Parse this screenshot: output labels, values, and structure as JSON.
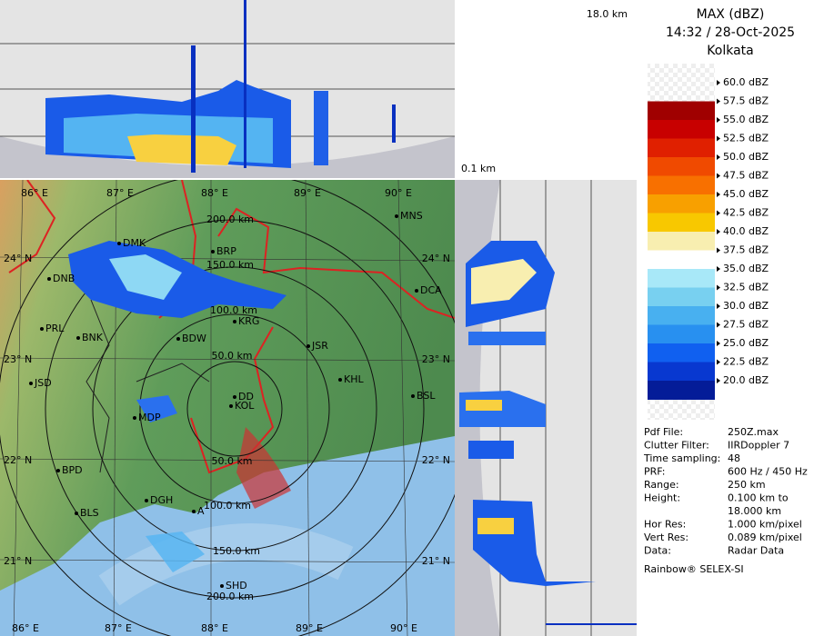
{
  "header": {
    "profile_top_label": "18.0 km",
    "profile_side_label": "0.1 km"
  },
  "legend": {
    "title": "MAX (dBZ)",
    "time": "14:32 / 28-Oct-2025",
    "location": "Kolkata",
    "labels": [
      "60.0 dBZ",
      "57.5 dBZ",
      "55.0 dBZ",
      "52.5 dBZ",
      "50.0 dBZ",
      "47.5 dBZ",
      "45.0 dBZ",
      "42.5 dBZ",
      "40.0 dBZ",
      "37.5 dBZ",
      "35.0 dBZ",
      "32.5 dBZ",
      "30.0 dBZ",
      "27.5 dBZ",
      "25.0 dBZ",
      "22.5 dBZ",
      "20.0 dBZ"
    ],
    "colors": [
      "#a00000",
      "#c80000",
      "#e02000",
      "#f04a00",
      "#f87000",
      "#f8a000",
      "#f8c800",
      "#f8eeb0",
      "#ffffff",
      "#a8e8f8",
      "#78d0f0",
      "#48b0f0",
      "#2890f0",
      "#1060f0",
      "#0838d0",
      "#041c98"
    ]
  },
  "info": {
    "rows": [
      {
        "label": "Pdf File:",
        "value": "250Z.max"
      },
      {
        "label": "Clutter Filter:",
        "value": "IIRDoppler 7"
      },
      {
        "label": "Time sampling:",
        "value": "48"
      },
      {
        "label": "PRF:",
        "value": "600 Hz / 450 Hz"
      },
      {
        "label": "Range:",
        "value": "250 km"
      },
      {
        "label": "Height:",
        "value": [
          "0.100 km to",
          "18.000 km"
        ]
      },
      {
        "label": "Hor Res:",
        "value": "1.000 km/pixel"
      },
      {
        "label": "Vert Res:",
        "value": "0.089 km/pixel"
      },
      {
        "label": "Data:",
        "value": "Radar Data"
      }
    ],
    "footer": "Rainbow® SELEX-SI"
  },
  "map": {
    "lon_labels_top": [
      "86° E",
      "87° E",
      "88° E",
      "89° E",
      "90° E"
    ],
    "lon_labels_bottom": [
      "86° E",
      "87° E",
      "88° E",
      "89° E",
      "90° E"
    ],
    "lat_labels_left": [
      "24° N",
      "23° N",
      "22° N",
      "21° N"
    ],
    "lat_labels_right": [
      "24° N",
      "23° N",
      "22° N",
      "21° N"
    ],
    "range_labels": [
      "200.0 km",
      "150.0 km",
      "100.0 km",
      "50.0 km",
      "50.0 km",
      "100.0 km",
      "150.0 km",
      "200.0 km"
    ],
    "stations": [
      "MNS",
      "BRP",
      "DMK",
      "DNB",
      "PRL",
      "BNK",
      "BDW",
      "KRG",
      "JSR",
      "DCA",
      "KHL",
      "BSL",
      "JSD",
      "MDP",
      "KOL",
      "DD",
      "BPD",
      "DGH",
      "BLS",
      "SHD",
      "A"
    ]
  }
}
